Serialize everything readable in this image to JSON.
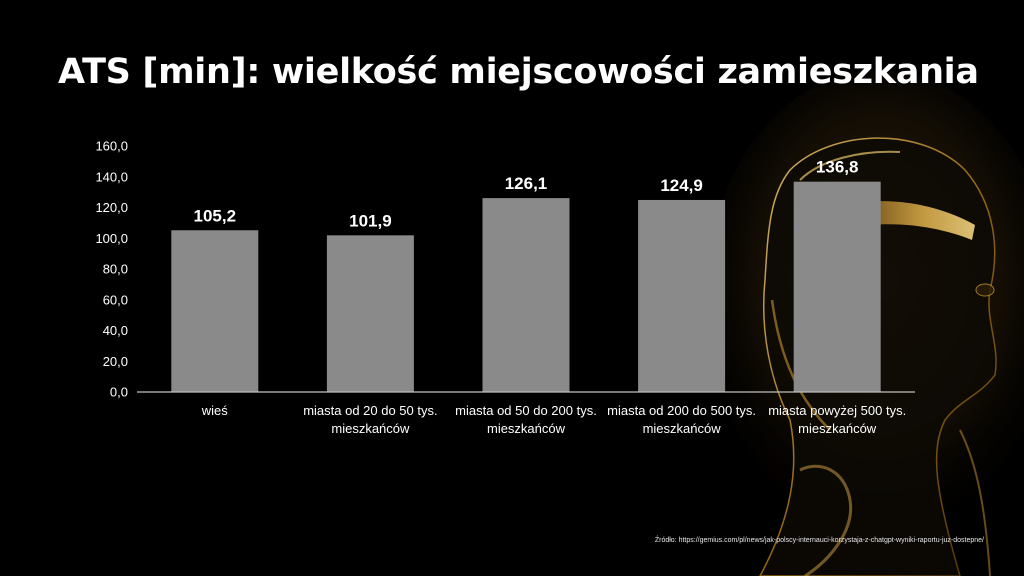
{
  "title": "ATS [min]: wielkość miejscowości zamieszkania",
  "source": "Źródło: https://gemius.com/pl/news/jak-polscy-internauci-korzystaja-z-chatgpt-wyniki-raportu-juz-dostepne/",
  "colors": {
    "bar": "#8a8a8a",
    "axis": "#bfbfbf",
    "background": "#000000",
    "accent": "#c9952a"
  },
  "chart_data": {
    "type": "bar",
    "categories": [
      [
        "wieś"
      ],
      [
        "miasta od 20 do 50 tys.",
        "mieszkańców"
      ],
      [
        "miasta od 50 do 200 tys.",
        "mieszkańców"
      ],
      [
        "miasta od 200 do 500 tys.",
        "mieszkańców"
      ],
      [
        "miasta powyżej 500 tys.",
        "mieszkańców"
      ]
    ],
    "values": [
      105.2,
      101.9,
      126.1,
      124.9,
      136.8
    ],
    "data_labels": [
      "105,2",
      "101,9",
      "126,1",
      "124,9",
      "136,8"
    ],
    "yticks": [
      "0,0",
      "20,0",
      "40,0",
      "60,0",
      "80,0",
      "100,0",
      "120,0",
      "140,0",
      "160,0"
    ],
    "ylim": [
      0,
      160
    ],
    "grid": false,
    "legend": false,
    "xlabel": "",
    "ylabel": ""
  }
}
